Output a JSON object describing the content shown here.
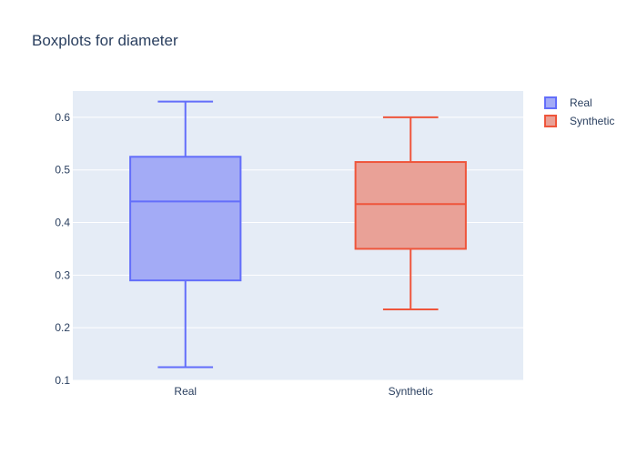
{
  "chart_data": {
    "type": "box",
    "title": "Boxplots for diameter",
    "xlabel": "",
    "ylabel": "",
    "ylim": [
      0.1,
      0.65
    ],
    "yticks": [
      "0.1",
      "0.2",
      "0.3",
      "0.4",
      "0.5",
      "0.6"
    ],
    "grid": true,
    "legend_position": "top-right",
    "categories": [
      "Real",
      "Synthetic"
    ],
    "series": [
      {
        "name": "Real",
        "color": "#636efa",
        "fill": "#a3abf6",
        "whisker_low": 0.125,
        "q1": 0.29,
        "median": 0.44,
        "q3": 0.525,
        "whisker_high": 0.63
      },
      {
        "name": "Synthetic",
        "color": "#ef553b",
        "fill": "#e9a197",
        "whisker_low": 0.235,
        "q1": 0.35,
        "median": 0.435,
        "q3": 0.515,
        "whisker_high": 0.6
      }
    ]
  }
}
